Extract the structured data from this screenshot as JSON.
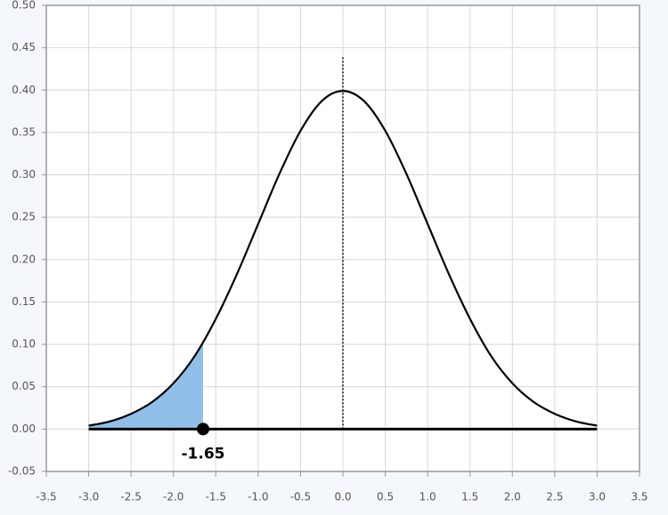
{
  "chart_data": {
    "type": "line",
    "x": [
      -3,
      -2.75,
      -2.5,
      -2.25,
      -2,
      -1.75,
      -1.5,
      -1.25,
      -1,
      -0.75,
      -0.5,
      -0.25,
      0,
      0.25,
      0.5,
      0.75,
      1,
      1.25,
      1.5,
      1.75,
      2,
      2.25,
      2.5,
      2.75,
      3
    ],
    "series": [
      {
        "color": "#000000",
        "values": [
          0.004,
          0.009,
          0.018,
          0.032,
          0.054,
          0.086,
          0.13,
          0.183,
          0.242,
          0.301,
          0.352,
          0.387,
          0.399,
          0.387,
          0.352,
          0.301,
          0.242,
          0.183,
          0.13,
          0.086,
          0.054,
          0.032,
          0.018,
          0.009,
          0.004
        ]
      }
    ],
    "shaded_area": {
      "color": "#90c0ea",
      "x": [
        -3,
        -2.75,
        -2.5,
        -2.25,
        -2,
        -1.75,
        -1.65
      ],
      "values": [
        0.004,
        0.009,
        0.018,
        0.032,
        0.054,
        0.086,
        0.102
      ]
    },
    "reference_line": {
      "x": 0,
      "y": 0.44
    },
    "marker": {
      "x": -1.65,
      "y": 0
    },
    "xlim": [
      -3.5,
      3.5
    ],
    "ylim": [
      -0.05,
      0.5
    ],
    "xticks": [
      {
        "value": -3.5,
        "label": "-3.5"
      },
      {
        "value": -3,
        "label": "-3.0"
      },
      {
        "value": -2.5,
        "label": "-2.5"
      },
      {
        "value": -2,
        "label": "-2.0"
      },
      {
        "value": -1.5,
        "label": "-1.5"
      },
      {
        "value": -1,
        "label": "-1.0"
      },
      {
        "value": -0.5,
        "label": "-0.5"
      },
      {
        "value": 0,
        "label": "0.0"
      },
      {
        "value": 0.5,
        "label": "0.5"
      },
      {
        "value": 1,
        "label": "1.0"
      },
      {
        "value": 1.5,
        "label": "1.5"
      },
      {
        "value": 2,
        "label": "2.0"
      },
      {
        "value": 2.5,
        "label": "2.5"
      },
      {
        "value": 3,
        "label": "3.0"
      },
      {
        "value": 3.5,
        "label": "3.5"
      }
    ],
    "yticks": [
      {
        "value": -0.05,
        "label": "-0.05"
      },
      {
        "value": 0,
        "label": "0.00"
      },
      {
        "value": 0.05,
        "label": "0.05"
      },
      {
        "value": 0.1,
        "label": "0.10"
      },
      {
        "value": 0.15,
        "label": "0.15"
      },
      {
        "value": 0.2,
        "label": "0.20"
      },
      {
        "value": 0.25,
        "label": "0.25"
      },
      {
        "value": 0.3,
        "label": "0.30"
      },
      {
        "value": 0.35,
        "label": "0.35"
      },
      {
        "value": 0.4,
        "label": "0.40"
      },
      {
        "value": 0.45,
        "label": "0.45"
      },
      {
        "value": 0.5,
        "label": "0.50"
      }
    ],
    "grid": true
  }
}
